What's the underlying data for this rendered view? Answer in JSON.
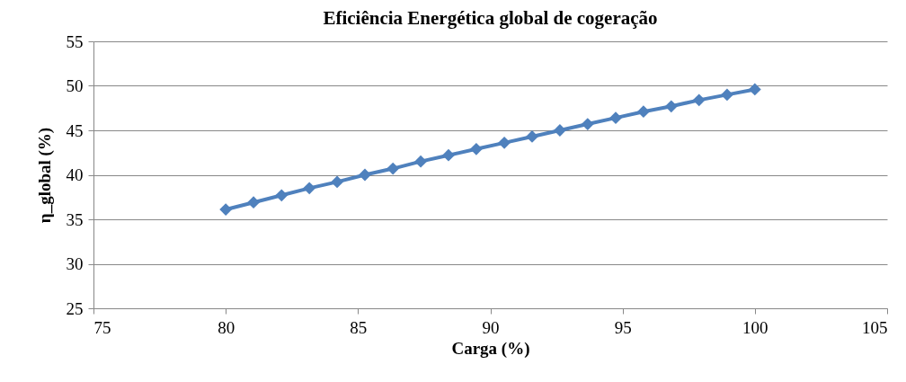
{
  "chart_data": {
    "type": "line",
    "title": "Eficiência Energética global de cogeração",
    "xlabel": "Carga (%)",
    "ylabel": "η_global (%)",
    "x": [
      80,
      81.05,
      82.11,
      83.16,
      84.21,
      85.26,
      86.32,
      87.37,
      88.42,
      89.47,
      90.53,
      91.58,
      92.63,
      93.68,
      94.74,
      95.79,
      96.84,
      97.89,
      98.95,
      100
    ],
    "series": [
      {
        "color": "#4f81bd",
        "values": [
          36.1,
          36.9,
          37.7,
          38.5,
          39.2,
          40.0,
          40.7,
          41.5,
          42.2,
          42.9,
          43.6,
          44.3,
          45.0,
          45.7,
          46.4,
          47.1,
          47.7,
          48.4,
          49.0,
          49.6
        ]
      }
    ],
    "xlim": [
      75,
      105
    ],
    "xticks": [
      75,
      80,
      85,
      90,
      95,
      100,
      105
    ],
    "ylim": [
      25,
      55
    ],
    "yticks": [
      25,
      30,
      35,
      40,
      45,
      50,
      55
    ],
    "grid": "y",
    "marker": "diamond",
    "line_style": "solid",
    "legend": false
  }
}
